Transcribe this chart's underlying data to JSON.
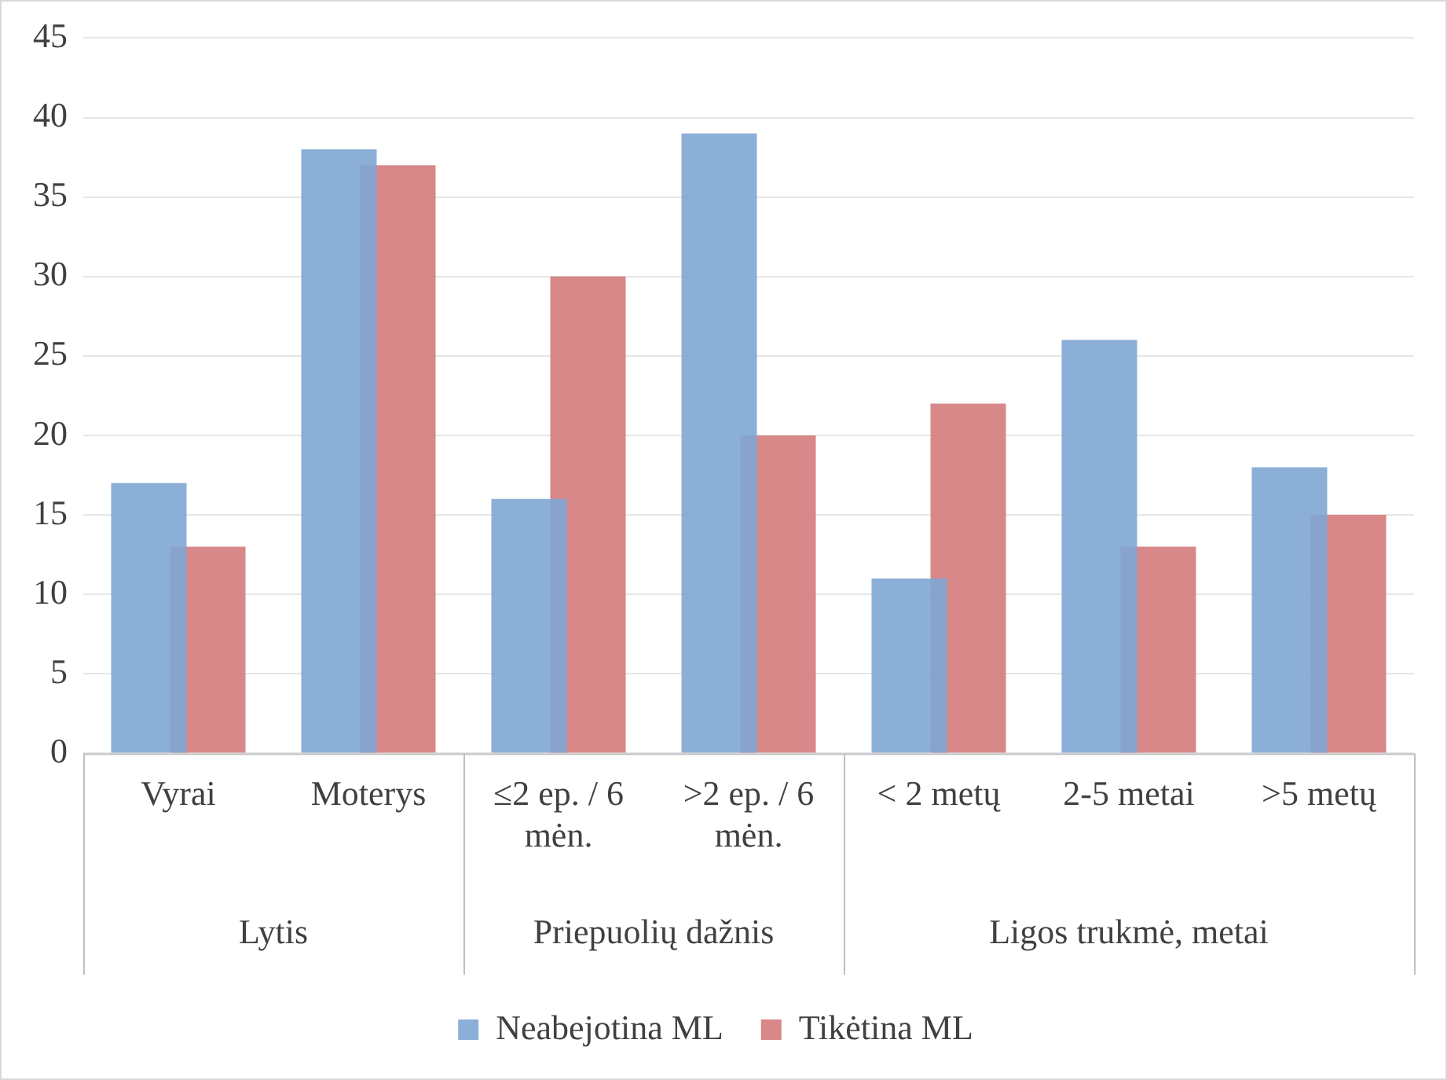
{
  "chart_data": {
    "type": "bar",
    "categories": [
      "Vyrai",
      "Moterys",
      "≤2 ep. / 6 mėn.",
      ">2 ep. / 6 mėn.",
      "< 2 metų",
      "2-5 metai",
      ">5 metų"
    ],
    "series": [
      {
        "name": "Neabejotina ML",
        "color": "#7fa6d4",
        "values": [
          17,
          38,
          16,
          39,
          11,
          26,
          18
        ]
      },
      {
        "name": "Tikėtina ML",
        "color": "#d47b7b",
        "values": [
          13,
          37,
          30,
          20,
          22,
          13,
          15
        ]
      }
    ],
    "annotations": [
      "Lytis",
      "Priepuolių dažnis",
      "Ligos trukmė, metai"
    ],
    "ylim": [
      0,
      45
    ],
    "yticks": [
      0,
      5,
      10,
      15,
      20,
      25,
      30,
      35,
      40,
      45
    ],
    "grid": "y",
    "legend": "bottom"
  }
}
